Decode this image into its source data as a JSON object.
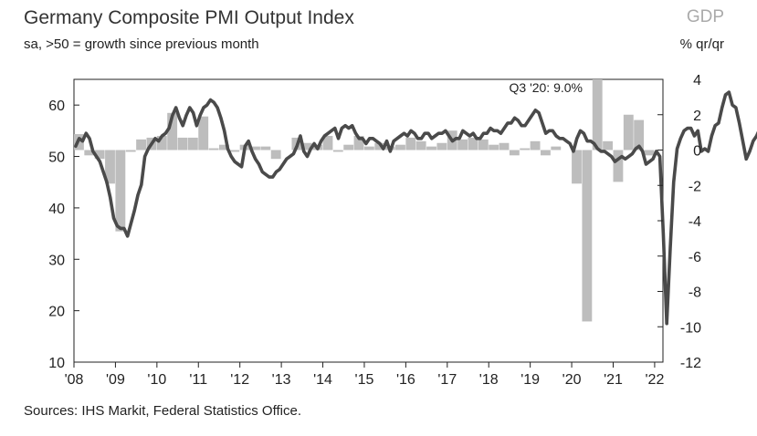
{
  "header": {
    "title": "Germany Composite PMI Output Index",
    "subtitle": "sa, >50 = growth since previous month",
    "right_title": "GDP",
    "right_unit": "% qr/qr"
  },
  "footer": {
    "source": "Sources: IHS Markit, Federal Statistics Office."
  },
  "colors": {
    "pmi_line": "#4a4a4a",
    "gdp_bars": "#bdbdbd",
    "axis": "#222222"
  },
  "chart_data": {
    "type": "bar+line",
    "title": "Germany Composite PMI Output Index",
    "subtitle": "sa, >50 = growth since previous month",
    "grid": false,
    "x_ticks": [
      "'08",
      "'09",
      "'10",
      "'11",
      "'12",
      "'13",
      "'14",
      "'15",
      "'16",
      "'17",
      "'18",
      "'19",
      "'20",
      "'21",
      "'22"
    ],
    "left_axis": {
      "ticks": [
        10,
        20,
        30,
        40,
        50,
        60
      ],
      "ylim": [
        10,
        65
      ]
    },
    "right_axis": {
      "ticks": [
        4,
        2,
        0,
        -2,
        -4,
        -6,
        -8,
        -10,
        -12
      ],
      "ylim": [
        -12,
        4
      ],
      "label": "% qr/qr"
    },
    "annotations": [
      {
        "text": "Q3 '20: 9.0%"
      }
    ],
    "gdp_quarters": [
      {
        "x": 2008.0,
        "v": 0.9
      },
      {
        "x": 2008.25,
        "v": -0.3
      },
      {
        "x": 2008.5,
        "v": -0.5
      },
      {
        "x": 2008.75,
        "v": -1.9
      },
      {
        "x": 2009.0,
        "v": -4.6
      },
      {
        "x": 2009.25,
        "v": -0.1
      },
      {
        "x": 2009.5,
        "v": 0.6
      },
      {
        "x": 2009.75,
        "v": 0.7
      },
      {
        "x": 2010.0,
        "v": 0.8
      },
      {
        "x": 2010.25,
        "v": 2.1
      },
      {
        "x": 2010.5,
        "v": 0.7
      },
      {
        "x": 2010.75,
        "v": 0.7
      },
      {
        "x": 2011.0,
        "v": 1.9
      },
      {
        "x": 2011.25,
        "v": 0.1
      },
      {
        "x": 2011.5,
        "v": 0.3
      },
      {
        "x": 2011.75,
        "v": -0.1
      },
      {
        "x": 2012.0,
        "v": 0.3
      },
      {
        "x": 2012.25,
        "v": 0.2
      },
      {
        "x": 2012.5,
        "v": 0.2
      },
      {
        "x": 2012.75,
        "v": -0.5
      },
      {
        "x": 2013.0,
        "v": 0.0
      },
      {
        "x": 2013.25,
        "v": 0.7
      },
      {
        "x": 2013.5,
        "v": 0.4
      },
      {
        "x": 2013.75,
        "v": 0.3
      },
      {
        "x": 2014.0,
        "v": 0.8
      },
      {
        "x": 2014.25,
        "v": -0.1
      },
      {
        "x": 2014.5,
        "v": 0.3
      },
      {
        "x": 2014.75,
        "v": 0.8
      },
      {
        "x": 2015.0,
        "v": 0.2
      },
      {
        "x": 2015.25,
        "v": 0.4
      },
      {
        "x": 2015.5,
        "v": 0.2
      },
      {
        "x": 2015.75,
        "v": 0.3
      },
      {
        "x": 2016.0,
        "v": 0.7
      },
      {
        "x": 2016.25,
        "v": 0.5
      },
      {
        "x": 2016.5,
        "v": 0.2
      },
      {
        "x": 2016.75,
        "v": 0.4
      },
      {
        "x": 2017.0,
        "v": 1.1
      },
      {
        "x": 2017.25,
        "v": 0.6
      },
      {
        "x": 2017.5,
        "v": 0.7
      },
      {
        "x": 2017.75,
        "v": 0.6
      },
      {
        "x": 2018.0,
        "v": 0.3
      },
      {
        "x": 2018.25,
        "v": 0.4
      },
      {
        "x": 2018.5,
        "v": -0.3
      },
      {
        "x": 2018.75,
        "v": 0.1
      },
      {
        "x": 2019.0,
        "v": 0.5
      },
      {
        "x": 2019.25,
        "v": -0.3
      },
      {
        "x": 2019.5,
        "v": 0.2
      },
      {
        "x": 2019.75,
        "v": 0.0
      },
      {
        "x": 2020.0,
        "v": -1.9
      },
      {
        "x": 2020.25,
        "v": -9.7
      },
      {
        "x": 2020.5,
        "v": 9.0
      },
      {
        "x": 2020.75,
        "v": 0.5
      },
      {
        "x": 2021.0,
        "v": -1.8
      },
      {
        "x": 2021.25,
        "v": 2.0
      },
      {
        "x": 2021.5,
        "v": 1.7
      },
      {
        "x": 2021.75,
        "v": -0.3
      }
    ],
    "pmi_monthly": {
      "start": 2008.0,
      "step_months": 1,
      "values": [
        52.0,
        53.5,
        53.0,
        54.5,
        53.5,
        51.0,
        50.0,
        49.0,
        47.0,
        45.0,
        42.0,
        38.0,
        36.5,
        36.0,
        36.0,
        34.5,
        37.0,
        39.5,
        42.5,
        44.5,
        50.0,
        51.5,
        52.5,
        53.5,
        53.0,
        54.0,
        54.5,
        55.5,
        58.0,
        59.5,
        57.5,
        56.0,
        58.0,
        59.5,
        58.5,
        56.0,
        58.0,
        59.5,
        60.0,
        61.0,
        60.5,
        59.5,
        57.5,
        55.0,
        51.5,
        50.0,
        49.0,
        48.5,
        48.0,
        52.0,
        53.0,
        51.0,
        49.5,
        48.5,
        47.0,
        46.5,
        46.0,
        46.0,
        47.0,
        47.5,
        48.5,
        49.5,
        50.0,
        50.5,
        52.0,
        54.0,
        51.0,
        50.0,
        51.5,
        52.5,
        51.5,
        53.0,
        54.0,
        54.5,
        55.0,
        55.5,
        53.5,
        55.5,
        56.0,
        55.5,
        56.0,
        54.5,
        53.5,
        53.5,
        52.5,
        53.5,
        53.5,
        53.0,
        52.5,
        51.5,
        53.0,
        51.0,
        53.0,
        53.5,
        54.0,
        54.5,
        54.0,
        55.0,
        54.5,
        53.5,
        53.5,
        54.5,
        54.5,
        53.5,
        54.0,
        54.5,
        54.5,
        55.0,
        54.0,
        53.0,
        53.5,
        53.5,
        55.0,
        54.5,
        54.0,
        54.5,
        53.5,
        53.5,
        54.5,
        54.5,
        55.5,
        55.0,
        55.0,
        54.5,
        55.5,
        56.5,
        56.5,
        57.5,
        57.0,
        56.0,
        56.0,
        57.0,
        58.0,
        59.0,
        58.5,
        56.5,
        54.5,
        55.0,
        55.0,
        54.0,
        53.5,
        53.5,
        53.0,
        52.5,
        51.0,
        53.5,
        55.0,
        54.5,
        53.0,
        53.0,
        52.5,
        51.5,
        51.0,
        51.0,
        50.5,
        50.0,
        49.0,
        49.5,
        50.0,
        49.5,
        50.0,
        50.5,
        51.5,
        52.0,
        51.0,
        48.5,
        49.0,
        49.5,
        51.0,
        50.0,
        35.0,
        17.5,
        32.0,
        45.0,
        51.5,
        53.5,
        55.0,
        55.5,
        55.5,
        54.0,
        55.0,
        51.0,
        51.5,
        51.0,
        54.0,
        56.0,
        56.5,
        59.5,
        62.0,
        62.5,
        60.0,
        59.5,
        56.5,
        53.0,
        49.5,
        51.0,
        53.0,
        54.0,
        55.5,
        56.0
      ]
    }
  }
}
